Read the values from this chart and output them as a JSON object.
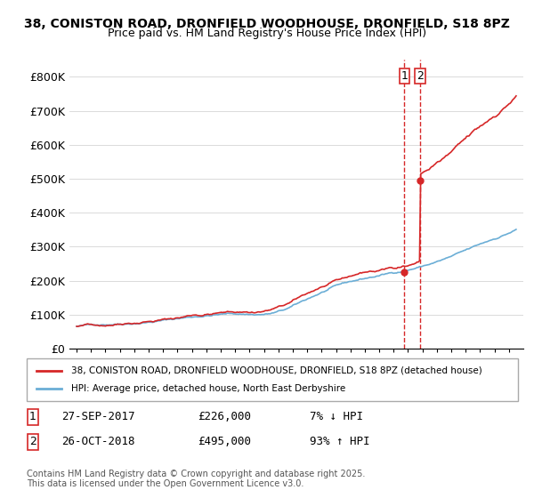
{
  "title_line1": "38, CONISTON ROAD, DRONFIELD WOODHOUSE, DRONFIELD, S18 8PZ",
  "title_line2": "Price paid vs. HM Land Registry's House Price Index (HPI)",
  "ylabel": "",
  "xlabel": "",
  "ylim": [
    0,
    850000
  ],
  "yticks": [
    0,
    100000,
    200000,
    300000,
    400000,
    500000,
    600000,
    700000,
    800000
  ],
  "ytick_labels": [
    "£0",
    "£100K",
    "£200K",
    "£300K",
    "£400K",
    "£500K",
    "£600K",
    "£700K",
    "£800K"
  ],
  "hpi_color": "#6baed6",
  "price_color": "#d62728",
  "dashed_color": "#d62728",
  "purchase1_date_idx": 22.75,
  "purchase1_price": 226000,
  "purchase1_label": "1",
  "purchase2_date_idx": 23.83,
  "purchase2_price": 495000,
  "purchase2_label": "2",
  "legend_line1": "38, CONISTON ROAD, DRONFIELD WOODHOUSE, DRONFIELD, S18 8PZ (detached house)",
  "legend_line2": "HPI: Average price, detached house, North East Derbyshire",
  "table_row1": [
    "1",
    "27-SEP-2017",
    "£226,000",
    "7% ↓ HPI"
  ],
  "table_row2": [
    "2",
    "26-OCT-2018",
    "£495,000",
    "93% ↑ HPI"
  ],
  "footer": "Contains HM Land Registry data © Crown copyright and database right 2025.\nThis data is licensed under the Open Government Licence v3.0.",
  "background_color": "#ffffff",
  "grid_color": "#cccccc"
}
